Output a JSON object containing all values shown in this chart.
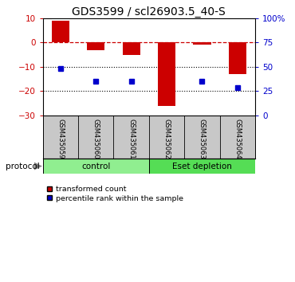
{
  "title": "GDS3599 / scl26903.5_40-S",
  "samples": [
    "GSM435059",
    "GSM435060",
    "GSM435061",
    "GSM435062",
    "GSM435063",
    "GSM435064"
  ],
  "red_bars": [
    9.0,
    -3.0,
    -5.2,
    -26.0,
    -1.0,
    -13.0
  ],
  "blue_dots": [
    -10.8,
    -16.0,
    -16.0,
    null,
    -16.0,
    -18.5
  ],
  "ylim_left": [
    -30,
    10
  ],
  "yticks_left": [
    -30,
    -20,
    -10,
    0,
    10
  ],
  "ylim_right": [
    0,
    100
  ],
  "yticks_right": [
    0,
    25,
    50,
    75,
    100
  ],
  "dotted_lines": [
    -10,
    -20
  ],
  "groups": [
    {
      "label": "control",
      "indices": [
        0,
        1,
        2
      ],
      "color": "#90EE90"
    },
    {
      "label": "Eset depletion",
      "indices": [
        3,
        4,
        5
      ],
      "color": "#55DD55"
    }
  ],
  "protocol_label": "protocol",
  "bar_color": "#CC0000",
  "dot_color": "#0000CC",
  "legend_red": "transformed count",
  "legend_blue": "percentile rank within the sample",
  "bg_color": "#FFFFFF",
  "tick_color_left": "#CC0000",
  "tick_color_right": "#0000CC",
  "title_fontsize": 10,
  "tick_fontsize": 7.5,
  "label_fontsize": 7
}
